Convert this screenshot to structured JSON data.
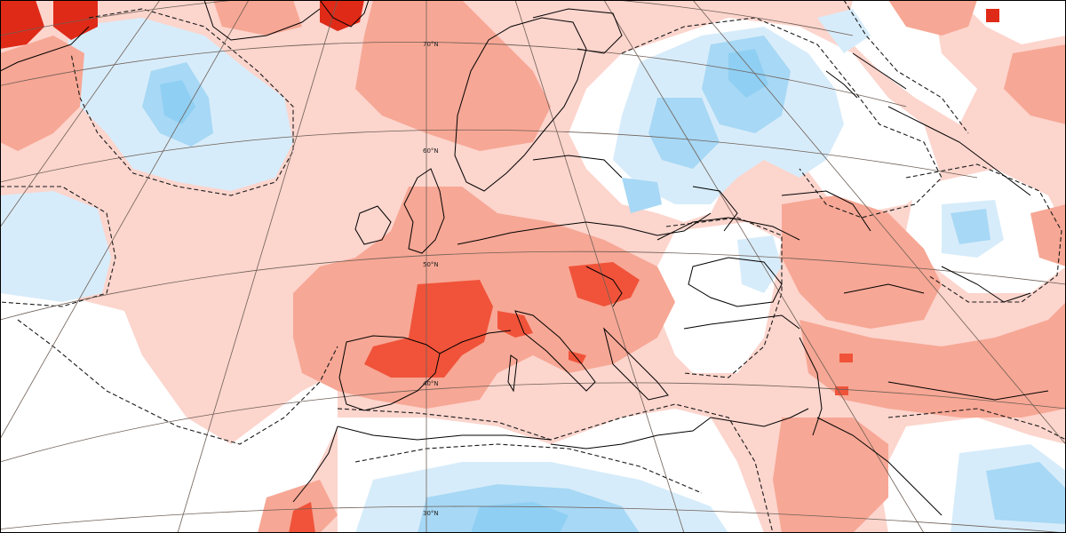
{
  "map": {
    "projection": "conic",
    "region": "Europe, North Atlantic, North Africa and Middle East",
    "variable": "anomaly field",
    "latitude_labels": [
      "70°N",
      "60°N",
      "50°N",
      "40°N",
      "30°N"
    ]
  },
  "colors": {
    "background": "#ffffff",
    "pos_weak": "#fcd5cd",
    "pos_mid": "#f7a795",
    "pos_strong": "#f0533a",
    "pos_extreme": "#df2a18",
    "neg_weak": "#d7ecfa",
    "neg_mid": "#a7d8f5",
    "neg_strong": "#8fcff3",
    "coastline": "#000000",
    "graticule": "#6e5f56"
  }
}
